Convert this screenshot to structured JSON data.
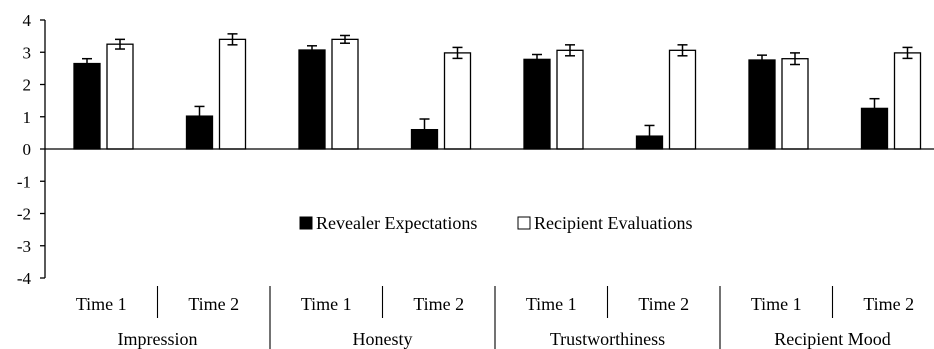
{
  "chart_data": {
    "type": "bar",
    "title": "",
    "xlabel": "",
    "ylabel": "",
    "ylim": [
      -4,
      4
    ],
    "yticks": [
      "4",
      "3",
      "2",
      "1",
      "0",
      "-1",
      "-2",
      "-3",
      "-4"
    ],
    "grid": false,
    "legend_position": "center (lower half of plot)",
    "groups": [
      "Impression",
      "Honesty",
      "Trustworthiness",
      "Recipient Mood"
    ],
    "subcategories": [
      "Time 1",
      "Time 2",
      "Time 1",
      "Time 2",
      "Time 1",
      "Time 2",
      "Time 1",
      "Time 2"
    ],
    "series": [
      {
        "name": "Revealer Expectations",
        "color": "#000000",
        "values": [
          2.65,
          1.02,
          3.07,
          0.6,
          2.78,
          0.4,
          2.76,
          1.26
        ],
        "error": [
          0.15,
          0.3,
          0.13,
          0.33,
          0.15,
          0.33,
          0.15,
          0.3
        ]
      },
      {
        "name": "Recipient Evaluations",
        "color": "#ffffff",
        "values": [
          3.25,
          3.4,
          3.4,
          2.98,
          3.06,
          3.06,
          2.8,
          2.98
        ],
        "error": [
          0.15,
          0.17,
          0.12,
          0.17,
          0.17,
          0.17,
          0.18,
          0.17
        ]
      }
    ]
  }
}
